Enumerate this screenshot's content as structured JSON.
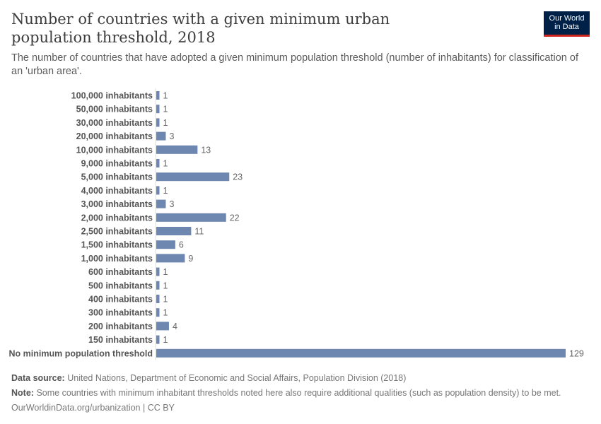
{
  "header": {
    "title": "Number of countries with a given minimum urban population threshold, 2018",
    "subtitle": "The number of countries that have adopted a given minimum population threshold (number of inhabitants) for classification of an 'urban area'.",
    "logo": "Our World in Data"
  },
  "chart_data": {
    "type": "bar",
    "orientation": "horizontal",
    "title": "Number of countries with a given minimum urban population threshold, 2018",
    "categories": [
      "100,000 inhabitants",
      "50,000 inhabitants",
      "30,000 inhabitants",
      "20,000 inhabitants",
      "10,000 inhabitants",
      "9,000 inhabitants",
      "5,000 inhabitants",
      "4,000 inhabitants",
      "3,000 inhabitants",
      "2,000 inhabitants",
      "2,500 inhabitants",
      "1,500 inhabitants",
      "1,000 inhabitants",
      "600 inhabitants",
      "500 inhabitants",
      "400 inhabitants",
      "300 inhabitants",
      "200 inhabitants",
      "150 inhabitants",
      "No minimum population threshold"
    ],
    "values": [
      1,
      1,
      1,
      3,
      13,
      1,
      23,
      1,
      3,
      22,
      11,
      6,
      9,
      1,
      1,
      1,
      1,
      4,
      1,
      129
    ],
    "xlim": [
      0,
      129
    ],
    "bar_color": "#6d87b1",
    "grid": false,
    "data_labels": true
  },
  "footer": {
    "source_label": "Data source:",
    "source": "United Nations, Department of Economic and Social Affairs, Population Division (2018)",
    "note_label": "Note:",
    "note": "Some countries with minimum inhabitant thresholds noted here also require additional qualities (such as population density) to be met.",
    "url": "OurWorldinData.org/urbanization | CC BY"
  }
}
